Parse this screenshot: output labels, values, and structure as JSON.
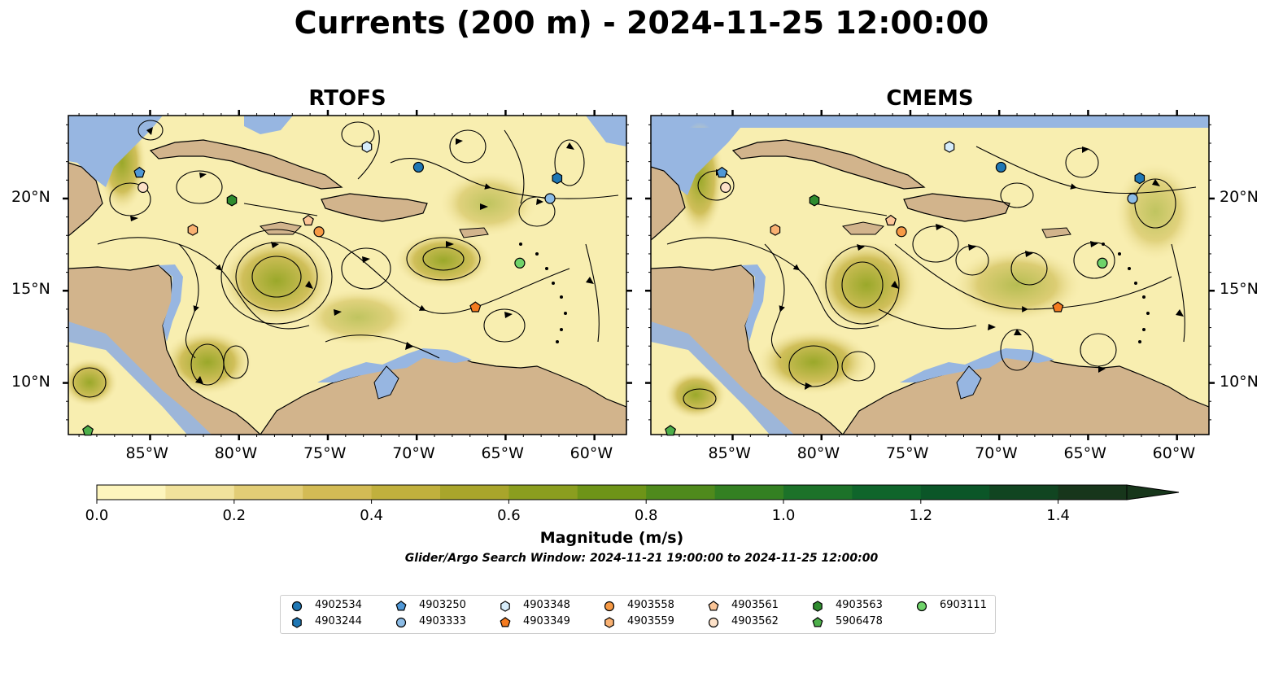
{
  "title": "Currents (200 m) - 2024-11-25 12:00:00",
  "panels": [
    {
      "title": "RTOFS"
    },
    {
      "title": "CMEMS"
    }
  ],
  "axes": {
    "lon_ticks": [
      "85°W",
      "80°W",
      "75°W",
      "70°W",
      "65°W",
      "60°W"
    ],
    "lat_ticks": [
      "20°N",
      "15°N",
      "10°N"
    ],
    "lon_range": [
      -89.6,
      -58.2
    ],
    "lat_range": [
      7.2,
      24.5
    ]
  },
  "colorbar": {
    "label": "Magnitude (m/s)",
    "ticks": [
      "0.0",
      "0.2",
      "0.4",
      "0.6",
      "0.8",
      "1.0",
      "1.2",
      "1.4"
    ],
    "range": [
      0.0,
      1.5
    ],
    "extend": "max",
    "colors": [
      "#fdf5bd",
      "#f1e29c",
      "#e2cd76",
      "#d3bb55",
      "#c1b03d",
      "#a9a52b",
      "#8b9e1f",
      "#6e9418",
      "#4f8a1c",
      "#338022",
      "#1c7229",
      "#0f652b",
      "#0b5628",
      "#114521",
      "#17361b"
    ]
  },
  "colors": {
    "ocean_deep": "#97b6e1",
    "land": "#d2b48c",
    "field_low": "#f8eeb0"
  },
  "search_window": "Glider/Argo Search Window: 2024-11-21 19:00:00 to 2024-11-25 12:00:00",
  "floats": [
    {
      "id": "4902534",
      "marker": "circle",
      "color": "#1f77b4",
      "lon": -69.9,
      "lat": 21.7
    },
    {
      "id": "4903244",
      "marker": "hexagon",
      "color": "#1f77b4",
      "lon": -62.1,
      "lat": 21.1
    },
    {
      "id": "4903250",
      "marker": "pentagon",
      "color": "#4f97d6",
      "lon": -85.6,
      "lat": 21.4
    },
    {
      "id": "4903333",
      "marker": "circle",
      "color": "#8cbce6",
      "lon": -62.5,
      "lat": 20.0
    },
    {
      "id": "4903348",
      "marker": "hexagon",
      "color": "#d6ecfa",
      "lon": -72.8,
      "lat": 22.8
    },
    {
      "id": "4903349",
      "marker": "pentagon",
      "color": "#f47b20",
      "lon": -66.7,
      "lat": 14.1
    },
    {
      "id": "4903558",
      "marker": "circle",
      "color": "#f79a45",
      "lon": -75.5,
      "lat": 18.2
    },
    {
      "id": "4903559",
      "marker": "hexagon",
      "color": "#f9b172",
      "lon": -82.6,
      "lat": 18.3
    },
    {
      "id": "4903561",
      "marker": "pentagon",
      "color": "#fbc597",
      "lon": -76.1,
      "lat": 18.8
    },
    {
      "id": "4903562",
      "marker": "circle",
      "color": "#fde1c8",
      "lon": -85.4,
      "lat": 20.6
    },
    {
      "id": "4903563",
      "marker": "hexagon",
      "color": "#2e8b2e",
      "lon": -80.4,
      "lat": 19.9
    },
    {
      "id": "5906478",
      "marker": "pentagon",
      "color": "#4daf4a",
      "lon": -88.5,
      "lat": 7.4
    },
    {
      "id": "6903111",
      "marker": "circle",
      "color": "#6fd36a",
      "lon": -64.2,
      "lat": 16.5
    }
  ]
}
